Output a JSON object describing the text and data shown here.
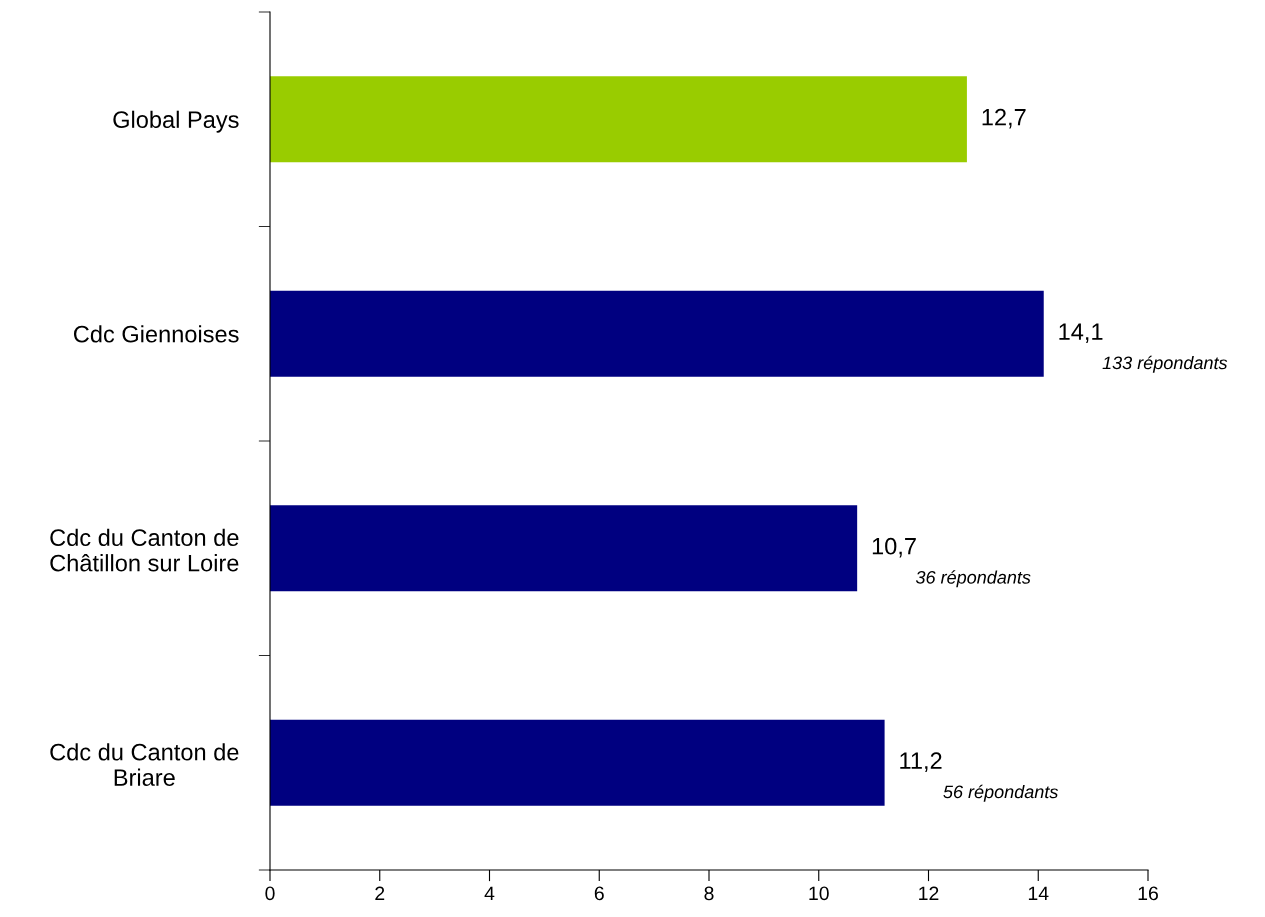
{
  "chart_data": {
    "type": "bar",
    "orientation": "horizontal",
    "categories": [
      "Global Pays",
      "Cdc Giennoises",
      "Cdc du Canton de\nChâtillon sur Loire",
      "Cdc du Canton de\nBriare"
    ],
    "values": [
      12.7,
      14.1,
      10.7,
      11.2
    ],
    "colors": [
      "#99cc00",
      "#000080",
      "#000080",
      "#000080"
    ],
    "value_labels": [
      "12,7",
      "14,1",
      "10,7",
      "11,2"
    ],
    "xlim": [
      0,
      16
    ],
    "xticks": [
      0,
      2,
      4,
      6,
      8,
      10,
      12,
      14,
      16
    ],
    "grid": false,
    "annotations": [
      "133 répondants",
      "36 répondants",
      "56 répondants"
    ]
  }
}
